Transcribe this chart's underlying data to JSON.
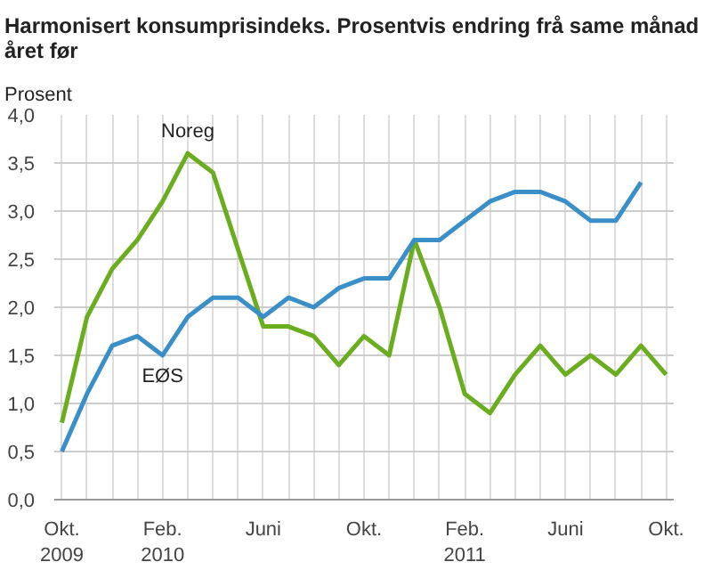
{
  "chart_data": {
    "type": "line",
    "title": "Harmonisert konsumprisindeks. Prosentvis endring frå same månad\nåret før",
    "ylabel": "Prosent",
    "categories": [
      "Okt.\n2009",
      null,
      null,
      null,
      "Feb.\n2010",
      null,
      null,
      null,
      "Juni",
      null,
      null,
      null,
      "Okt.",
      null,
      null,
      null,
      "Feb.\n2011",
      null,
      null,
      null,
      "Juni",
      null,
      null,
      null,
      "Okt."
    ],
    "series": [
      {
        "name": "Noreg",
        "color": "#6aad1f",
        "values": [
          0.8,
          1.9,
          2.4,
          2.7,
          3.1,
          3.6,
          3.4,
          2.6,
          1.8,
          1.8,
          1.7,
          1.4,
          1.7,
          1.5,
          2.7,
          2.0,
          1.1,
          0.9,
          1.3,
          1.6,
          1.3,
          1.5,
          1.3,
          1.6,
          1.3
        ]
      },
      {
        "name": "EØS",
        "color": "#3a8fc8",
        "values": [
          0.5,
          1.1,
          1.6,
          1.7,
          1.5,
          1.9,
          2.1,
          2.1,
          1.9,
          2.1,
          2.0,
          2.2,
          2.3,
          2.3,
          2.7,
          2.7,
          2.9,
          3.1,
          3.2,
          3.2,
          3.1,
          2.9,
          2.9,
          3.3,
          null
        ]
      }
    ],
    "ylim": [
      0,
      4
    ],
    "yticks": [
      {
        "value": 0,
        "label": "0,0"
      },
      {
        "value": 0.5,
        "label": "0,5"
      },
      {
        "value": 1,
        "label": "1,0"
      },
      {
        "value": 1.5,
        "label": "1,5"
      },
      {
        "value": 2,
        "label": "2,0"
      },
      {
        "value": 2.5,
        "label": "2,5"
      },
      {
        "value": 3,
        "label": "3,0"
      },
      {
        "value": 3.5,
        "label": "3,5"
      },
      {
        "value": 4,
        "label": "4,0"
      }
    ],
    "grid": true,
    "legend": false,
    "marker": "none",
    "line_style": "solid"
  }
}
